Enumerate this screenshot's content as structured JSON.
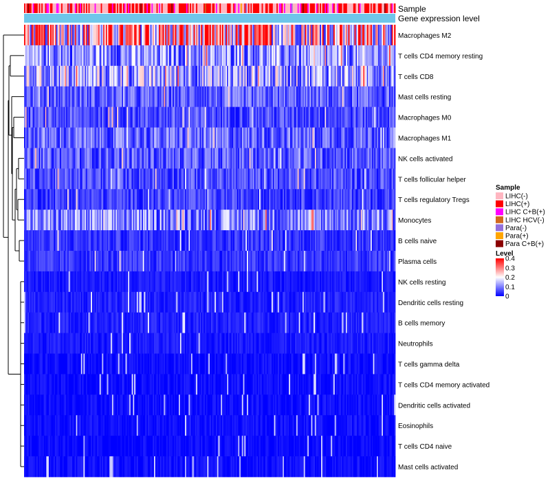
{
  "chart_data": {
    "type": "heatmap",
    "title": "",
    "annotation_tracks": [
      "Sample",
      "Gene expression level"
    ],
    "rows": [
      "Macrophages M2",
      "T cells CD4 memory resting",
      "T cells CD8",
      "Mast cells resting",
      "Macrophages M0",
      "Macrophages M1",
      "NK cells activated",
      "T cells follicular helper",
      "T cells regulatory  Tregs",
      "Monocytes",
      "B cells naive",
      "Plasma cells",
      "NK cells resting",
      "Dendritic cells resting",
      "B cells memory",
      "Neutrophils",
      "T cells gamma delta",
      "T cells CD4 memory activated",
      "Dendritic cells activated",
      "Eosinophils",
      "T cells CD4 naive",
      "Mast cells activated"
    ],
    "row_mean_levels": [
      0.24,
      0.11,
      0.13,
      0.07,
      0.06,
      0.08,
      0.07,
      0.06,
      0.05,
      0.1,
      0.04,
      0.04,
      0.02,
      0.025,
      0.025,
      0.02,
      0.01,
      0.01,
      0.01,
      0.01,
      0.005,
      0.01
    ],
    "column_count": 300,
    "sample_legend": {
      "title": "Sample",
      "items": [
        {
          "label": "LIHC(-)",
          "color": "#ffb6c1"
        },
        {
          "label": "LIHC(+)",
          "color": "#ff0000"
        },
        {
          "label": "LIHC C+B(+)",
          "color": "#ff00ff"
        },
        {
          "label": "LIHC HCV(-)",
          "color": "#d2691e"
        },
        {
          "label": "Para(-)",
          "color": "#9370db"
        },
        {
          "label": "Para(+)",
          "color": "#ffa500"
        },
        {
          "label": "Para C+B(+)",
          "color": "#8b0000"
        }
      ]
    },
    "sample_composition": [
      0.46,
      0.38,
      0.12,
      0.01,
      0.01,
      0.01,
      0.01
    ],
    "level_legend": {
      "title": "Level",
      "ticks": [
        "0.4",
        "0.3",
        "0.2",
        "0.1",
        "0"
      ],
      "min": 0,
      "max": 0.4
    },
    "gene_expression_color": "#6ec6ea",
    "color_scale": [
      "#0000ff",
      "#ffffff",
      "#ff0000"
    ]
  }
}
